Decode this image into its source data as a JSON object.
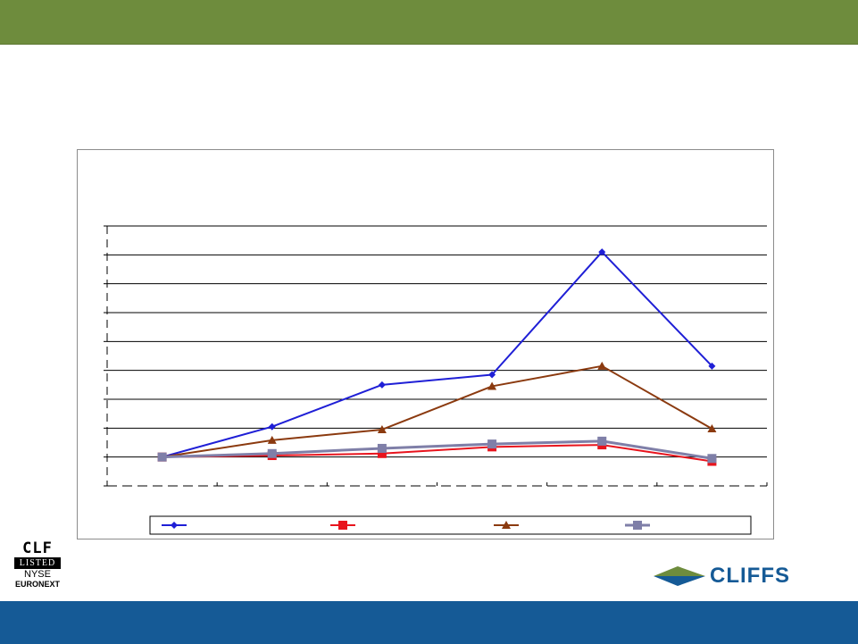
{
  "slide": {
    "header_color": "#6e8c3d",
    "footer_color": "#155a96"
  },
  "badge": {
    "ticker": "CLF",
    "listed": "LISTED",
    "exchange": "NYSE",
    "network": "EURONEXT"
  },
  "brand": {
    "wordmark": "CLIFFS",
    "color": "#155a96",
    "mark_colors": [
      "#6e8c3d",
      "#155a96"
    ]
  },
  "chart_data": {
    "type": "line",
    "title": "",
    "xlabel": "",
    "ylabel": "",
    "tick_labels_visible": false,
    "grid": true,
    "legend_position": "bottom",
    "ylim": [
      0,
      9
    ],
    "categories": [
      "1",
      "2",
      "3",
      "4",
      "5",
      "6"
    ],
    "series": [
      {
        "color": "#1f1fd6",
        "marker": "diamond",
        "values": [
          1.0,
          2.05,
          3.5,
          3.85,
          8.1,
          4.15
        ]
      },
      {
        "color": "#e8141d",
        "marker": "square",
        "values": [
          1.0,
          1.05,
          1.12,
          1.35,
          1.42,
          0.85
        ]
      },
      {
        "color": "#8b3a0f",
        "marker": "triangle",
        "values": [
          1.0,
          1.58,
          1.95,
          3.45,
          4.15,
          1.98
        ]
      },
      {
        "color": "#7f7fa8",
        "marker": "square",
        "values": [
          1.0,
          1.12,
          1.3,
          1.45,
          1.55,
          0.95
        ]
      }
    ]
  }
}
